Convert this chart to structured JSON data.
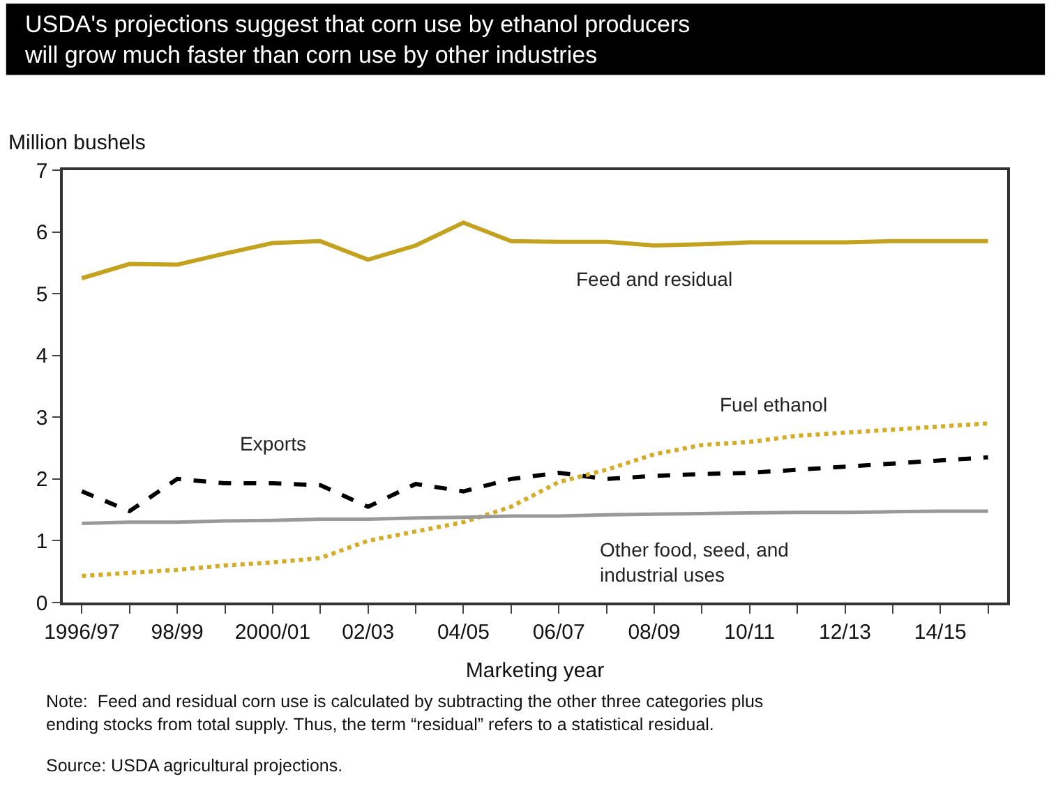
{
  "chart_data": {
    "type": "line",
    "title": "USDA's projections suggest that corn use by ethanol producers will grow much faster than corn use by other industries",
    "xlabel": "Marketing year",
    "ylabel": "Million bushels",
    "categories": [
      "1996/97",
      null,
      "98/99",
      null,
      "2000/01",
      null,
      "02/03",
      null,
      "04/05",
      null,
      "06/07",
      null,
      "08/09",
      null,
      "10/11",
      null,
      "12/13",
      null,
      "14/15",
      null
    ],
    "series": [
      {
        "name": "Feed and residual",
        "color": "#c2a21e",
        "line_style": "solid",
        "values": [
          5.25,
          5.48,
          5.47,
          5.65,
          5.82,
          5.85,
          5.55,
          5.78,
          6.15,
          5.85,
          5.84,
          5.84,
          5.78,
          5.8,
          5.83,
          5.83,
          5.83,
          5.85,
          5.85,
          5.85
        ]
      },
      {
        "name": "Exports",
        "color": "#000000",
        "line_style": "dashed",
        "values": [
          1.8,
          1.48,
          2.0,
          1.93,
          1.93,
          1.9,
          1.55,
          1.92,
          1.8,
          2.0,
          2.1,
          2.0,
          2.05,
          2.08,
          2.1,
          2.15,
          2.2,
          2.25,
          2.3,
          2.35
        ]
      },
      {
        "name": "Fuel ethanol",
        "color": "#d4ac2a",
        "line_style": "dotted",
        "values": [
          0.43,
          0.48,
          0.53,
          0.6,
          0.65,
          0.72,
          1.0,
          1.15,
          1.3,
          1.55,
          1.95,
          2.15,
          2.4,
          2.55,
          2.6,
          2.7,
          2.75,
          2.8,
          2.85,
          2.9
        ]
      },
      {
        "name": "Other food, seed, and industrial uses",
        "color": "#999999",
        "line_style": "solid",
        "values": [
          1.28,
          1.3,
          1.3,
          1.32,
          1.33,
          1.35,
          1.35,
          1.37,
          1.38,
          1.4,
          1.4,
          1.42,
          1.43,
          1.44,
          1.45,
          1.46,
          1.46,
          1.47,
          1.48,
          1.48
        ]
      }
    ],
    "ylim": [
      0,
      7
    ],
    "yticks": [
      0,
      1,
      2,
      3,
      4,
      5,
      6,
      7
    ],
    "legend": false,
    "marker": "none",
    "annotations": [
      "Note:  Feed and residual corn use is calculated by subtracting the other three categories plus ending stocks from total supply. Thus, the term “residual” refers to a statistical residual.",
      "Source: USDA agricultural projections."
    ]
  }
}
